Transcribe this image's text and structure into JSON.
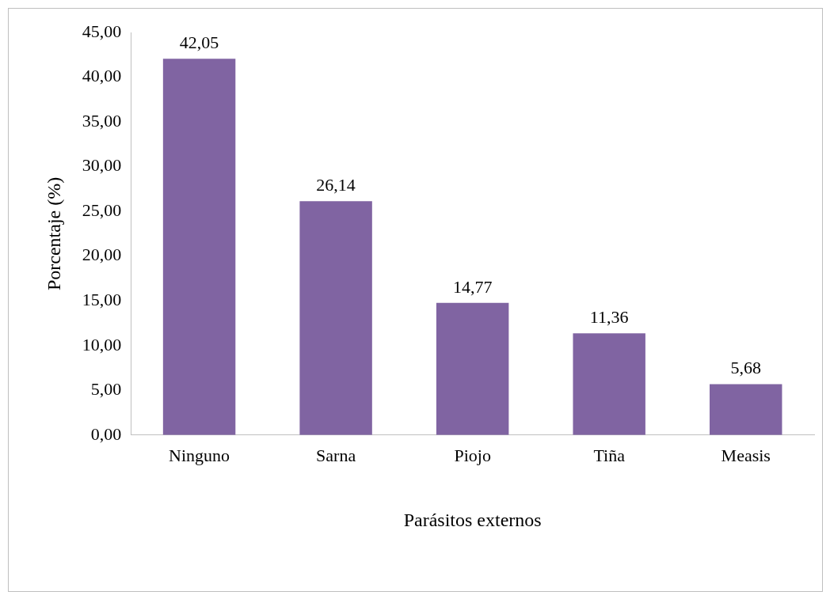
{
  "chart_data": {
    "type": "bar",
    "xlabel": "Parásitos externos",
    "ylabel": "Porcentaje (%)",
    "categories": [
      "Ninguno",
      "Sarna",
      "Piojo",
      "Tiña",
      "Measis"
    ],
    "values": [
      42.05,
      26.14,
      14.77,
      11.36,
      5.68
    ],
    "value_labels": [
      "42,05",
      "26,14",
      "14,77",
      "11,36",
      "5,68"
    ],
    "color": "#8064a2",
    "ylim": [
      0,
      45
    ],
    "yticks": [
      {
        "value": 0,
        "label": "0,00"
      },
      {
        "value": 5,
        "label": "5,00"
      },
      {
        "value": 10,
        "label": "10,00"
      },
      {
        "value": 15,
        "label": "15,00"
      },
      {
        "value": 20,
        "label": "20,00"
      },
      {
        "value": 25,
        "label": "25,00"
      },
      {
        "value": 30,
        "label": "30,00"
      },
      {
        "value": 35,
        "label": "35,00"
      },
      {
        "value": 40,
        "label": "40,00"
      },
      {
        "value": 45,
        "label": "45,00"
      }
    ],
    "grid": false,
    "legend": false
  }
}
